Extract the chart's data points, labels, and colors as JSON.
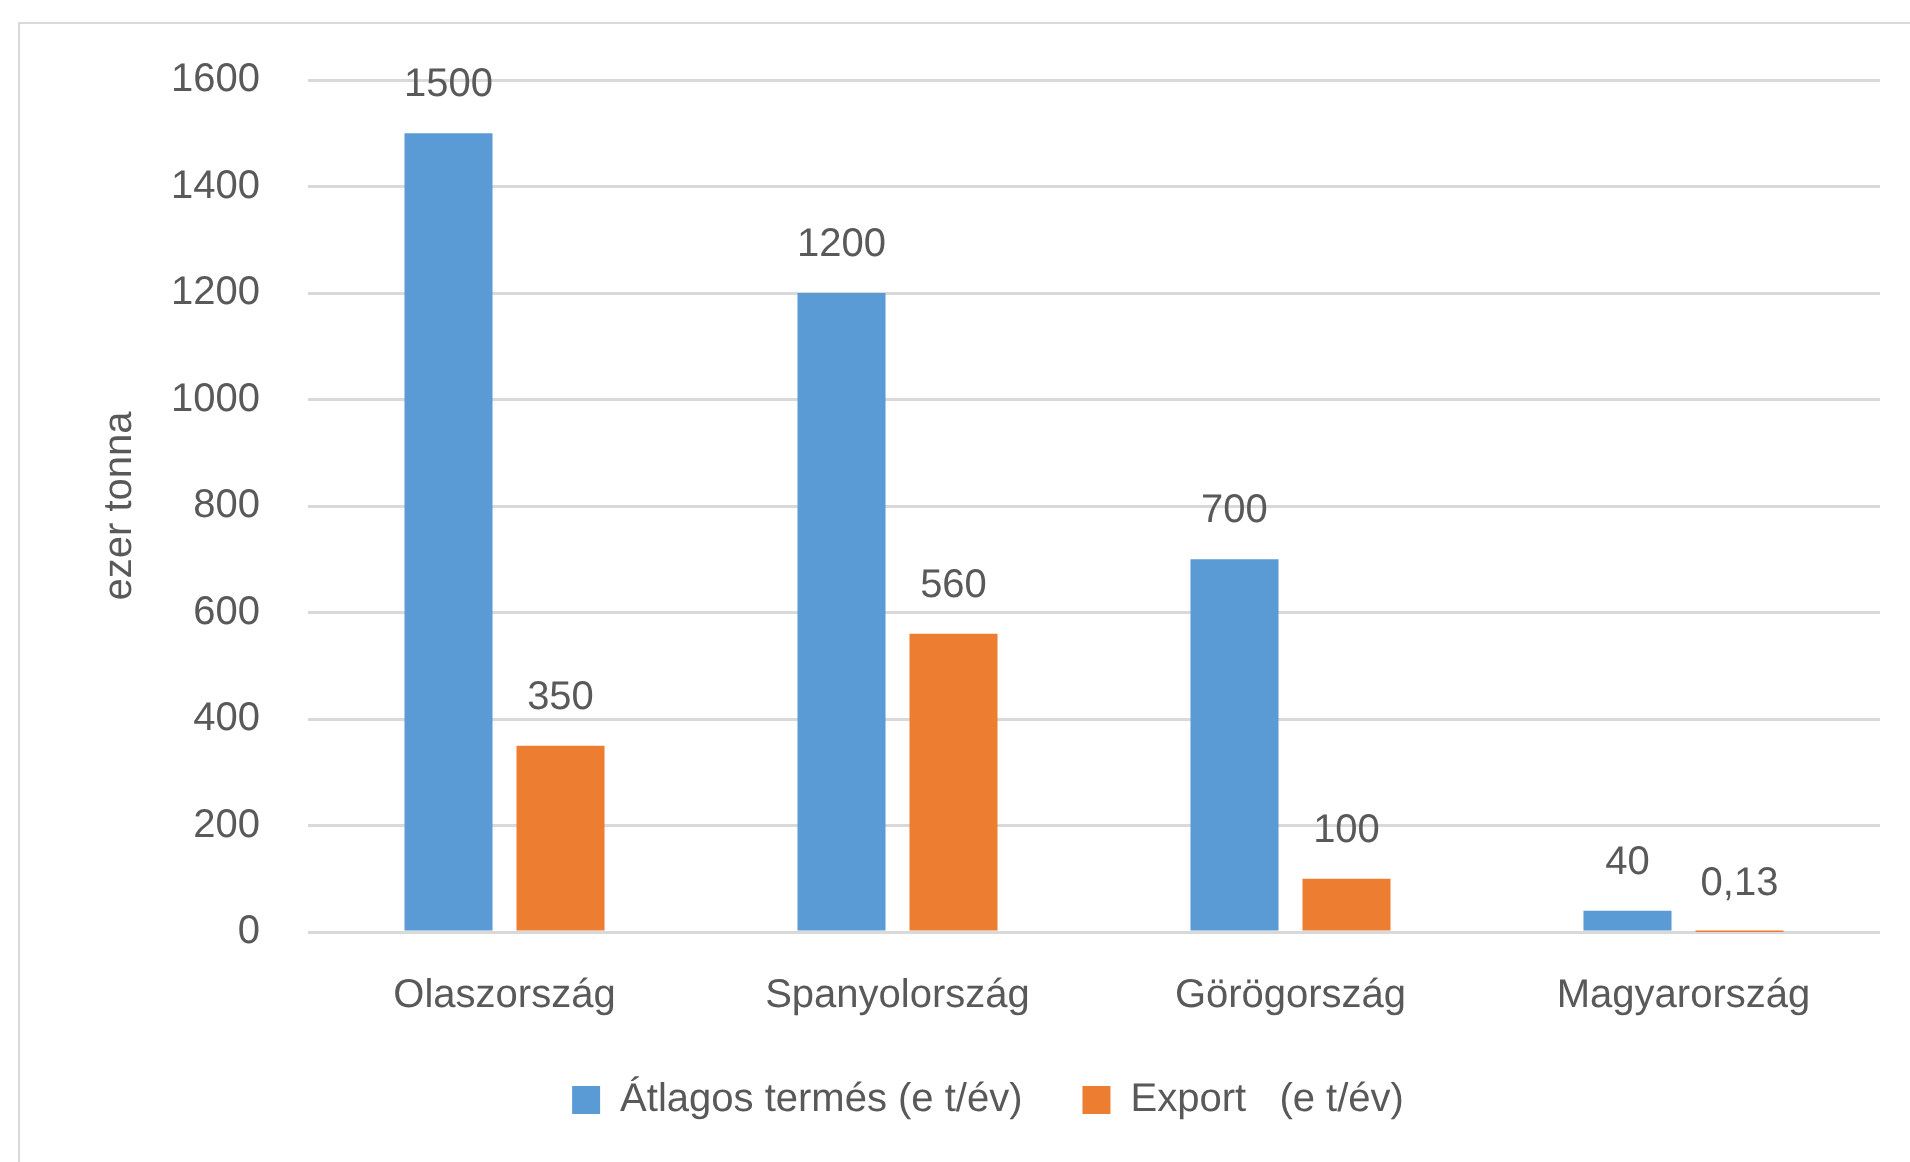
{
  "chart_data": {
    "type": "bar",
    "ylabel": "ezer tonna",
    "categories": [
      "Olaszország",
      "Spanyolország",
      "Görögország",
      "Magyarország"
    ],
    "series": [
      {
        "name": "Átlagos termés (e t/év)",
        "color": "#5b9bd5",
        "values": [
          1500,
          1200,
          700,
          40
        ],
        "value_labels": [
          "1500",
          "1200",
          "700",
          "40"
        ]
      },
      {
        "name": "Export   (e t/év)",
        "color": "#ed7d31",
        "values": [
          350,
          560,
          100,
          0.13
        ],
        "value_labels": [
          "350",
          "560",
          "100",
          "0,13"
        ]
      }
    ],
    "ylim": [
      0,
      1600
    ],
    "yticks": [
      0,
      200,
      400,
      600,
      800,
      1000,
      1200,
      1400,
      1600
    ],
    "grid": "y",
    "legend": "bottom"
  }
}
